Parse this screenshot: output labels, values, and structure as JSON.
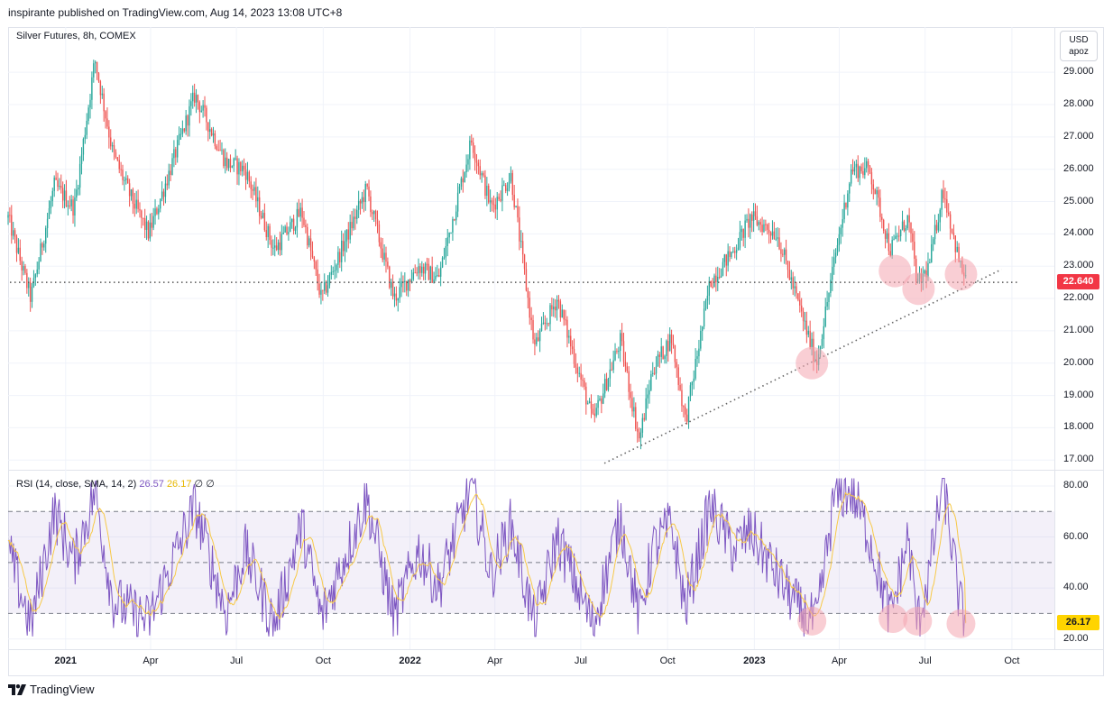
{
  "header": {
    "published": "inspirante published on TradingView.com, Aug 14, 2023 13:08 UTC+8"
  },
  "price_pane": {
    "legend": "Silver Futures, 8h, COMEX"
  },
  "currency_button": {
    "line1": "USD",
    "line2": "apoz"
  },
  "rsi_pane": {
    "legend_main": "RSI (14, close, SMA, 14, 2)",
    "rsi_value": "26.57",
    "sma_value": "26.17",
    "extra1": "∅",
    "extra2": "∅"
  },
  "last_price": "22.640",
  "last_rsi": "26.17",
  "footer": {
    "brand": "TradingView"
  },
  "colors": {
    "up": "#26a69a",
    "down": "#ef5350",
    "rsi": "#7e57c2",
    "rsi_sma": "#f7c948",
    "band": "#7e57c2",
    "highlight": "#f4a6b0"
  },
  "chart_data": [
    {
      "type": "candlestick",
      "title": "Silver Futures, 8h, COMEX",
      "ylim": [
        16.7,
        30.4
      ],
      "y_ticks": [
        "29.000",
        "28.000",
        "27.000",
        "26.000",
        "25.000",
        "24.000",
        "23.000",
        "22.000",
        "21.000",
        "20.000",
        "19.000",
        "18.000",
        "17.000"
      ],
      "x_ticks": [
        {
          "label": "2021",
          "bold": true
        },
        {
          "label": "Apr",
          "bold": false
        },
        {
          "label": "Jul",
          "bold": false
        },
        {
          "label": "Oct",
          "bold": false
        },
        {
          "label": "2022",
          "bold": true
        },
        {
          "label": "Apr",
          "bold": false
        },
        {
          "label": "Jul",
          "bold": false
        },
        {
          "label": "Oct",
          "bold": false
        },
        {
          "label": "2023",
          "bold": true
        },
        {
          "label": "Apr",
          "bold": false
        },
        {
          "label": "Jul",
          "bold": false
        },
        {
          "label": "Oct",
          "bold": false
        }
      ],
      "x_range": [
        "2020-11-01",
        "2023-11-15"
      ],
      "price_path": [
        [
          "2020-11-01",
          24.5
        ],
        [
          "2020-11-25",
          22.0
        ],
        [
          "2020-12-20",
          25.5
        ],
        [
          "2021-01-10",
          24.8
        ],
        [
          "2021-02-01",
          29.4
        ],
        [
          "2021-02-20",
          26.5
        ],
        [
          "2021-03-10",
          25.2
        ],
        [
          "2021-03-30",
          24.0
        ],
        [
          "2021-05-18",
          28.3
        ],
        [
          "2021-06-20",
          26.2
        ],
        [
          "2021-07-10",
          26.0
        ],
        [
          "2021-08-10",
          23.5
        ],
        [
          "2021-09-08",
          24.7
        ],
        [
          "2021-09-29",
          22.0
        ],
        [
          "2021-11-16",
          25.4
        ],
        [
          "2021-12-15",
          22.0
        ],
        [
          "2022-01-10",
          23.0
        ],
        [
          "2022-01-31",
          22.6
        ],
        [
          "2022-03-07",
          26.9
        ],
        [
          "2022-03-28",
          24.8
        ],
        [
          "2022-04-18",
          25.8
        ],
        [
          "2022-05-13",
          20.5
        ],
        [
          "2022-06-06",
          22.0
        ],
        [
          "2022-07-14",
          18.2
        ],
        [
          "2022-08-12",
          20.7
        ],
        [
          "2022-09-01",
          17.6
        ],
        [
          "2022-09-15",
          19.8
        ],
        [
          "2022-10-05",
          20.8
        ],
        [
          "2022-10-20",
          18.2
        ],
        [
          "2022-11-15",
          22.5
        ],
        [
          "2022-12-10",
          23.5
        ],
        [
          "2022-12-28",
          24.5
        ],
        [
          "2023-01-25",
          24.0
        ],
        [
          "2023-02-20",
          21.5
        ],
        [
          "2023-03-08",
          20.0
        ],
        [
          "2023-03-27",
          23.2
        ],
        [
          "2023-04-14",
          26.0
        ],
        [
          "2023-05-03",
          26.0
        ],
        [
          "2023-05-25",
          23.5
        ],
        [
          "2023-06-13",
          24.5
        ],
        [
          "2023-06-23",
          22.4
        ],
        [
          "2023-07-05",
          23.0
        ],
        [
          "2023-07-20",
          25.4
        ],
        [
          "2023-08-07",
          23.0
        ],
        [
          "2023-08-13",
          22.64
        ]
      ],
      "horizontal_level": 22.5,
      "trendline": [
        [
          "2022-07-26",
          16.9
        ],
        [
          "2023-09-20",
          22.9
        ]
      ],
      "highlight_circles": [
        [
          "2023-03-03",
          20.0
        ],
        [
          "2023-05-30",
          22.85
        ],
        [
          "2023-06-24",
          22.3
        ],
        [
          "2023-08-08",
          22.75
        ]
      ],
      "last_price": 22.64
    },
    {
      "type": "line",
      "title": "RSI (14, close, SMA, 14, 2)",
      "ylim": [
        16,
        86
      ],
      "y_ticks": [
        "80.00",
        "60.00",
        "40.00",
        "20.00"
      ],
      "band": [
        30,
        70
      ],
      "midline": 50,
      "series": [
        {
          "name": "RSI",
          "values_note": "oscillates between ~22 and ~83"
        },
        {
          "name": "SMA"
        }
      ],
      "rsi_path": [
        [
          "2020-11-01",
          55
        ],
        [
          "2020-11-25",
          25
        ],
        [
          "2020-12-20",
          70
        ],
        [
          "2021-01-10",
          50
        ],
        [
          "2021-02-01",
          78
        ],
        [
          "2021-02-20",
          35
        ],
        [
          "2021-03-30",
          27
        ],
        [
          "2021-05-18",
          72
        ],
        [
          "2021-06-20",
          30
        ],
        [
          "2021-07-10",
          55
        ],
        [
          "2021-08-10",
          25
        ],
        [
          "2021-09-08",
          65
        ],
        [
          "2021-09-29",
          28
        ],
        [
          "2021-11-16",
          75
        ],
        [
          "2021-12-15",
          28
        ],
        [
          "2022-01-10",
          55
        ],
        [
          "2022-01-31",
          40
        ],
        [
          "2022-03-07",
          80
        ],
        [
          "2022-03-28",
          45
        ],
        [
          "2022-04-18",
          65
        ],
        [
          "2022-05-13",
          25
        ],
        [
          "2022-06-06",
          60
        ],
        [
          "2022-07-14",
          25
        ],
        [
          "2022-08-12",
          68
        ],
        [
          "2022-09-01",
          28
        ],
        [
          "2022-09-15",
          55
        ],
        [
          "2022-10-05",
          65
        ],
        [
          "2022-10-20",
          32
        ],
        [
          "2022-11-15",
          72
        ],
        [
          "2022-12-10",
          55
        ],
        [
          "2022-12-28",
          62
        ],
        [
          "2023-01-25",
          45
        ],
        [
          "2023-02-20",
          30
        ],
        [
          "2023-03-08",
          26
        ],
        [
          "2023-03-27",
          76
        ],
        [
          "2023-04-14",
          78
        ],
        [
          "2023-05-03",
          60
        ],
        [
          "2023-05-25",
          28
        ],
        [
          "2023-06-13",
          60
        ],
        [
          "2023-06-23",
          26
        ],
        [
          "2023-07-05",
          45
        ],
        [
          "2023-07-20",
          82
        ],
        [
          "2023-08-07",
          33
        ],
        [
          "2023-08-13",
          26.57
        ]
      ],
      "highlight_circles": [
        [
          "2023-03-03",
          27
        ],
        [
          "2023-05-28",
          28
        ],
        [
          "2023-06-23",
          27
        ],
        [
          "2023-08-08",
          26
        ]
      ],
      "last_rsi": 26.57,
      "last_sma": 26.17
    }
  ]
}
